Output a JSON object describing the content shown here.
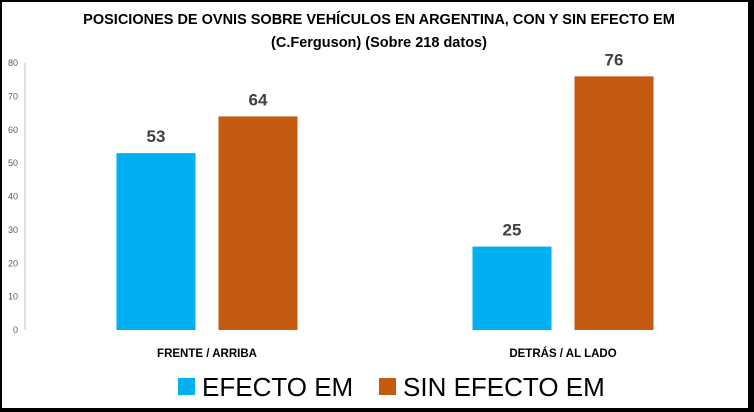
{
  "chart_data": {
    "type": "bar",
    "title": "POSICIONES DE OVNIS SOBRE VEHÍCULOS EN ARGENTINA, CON Y SIN EFECTO EM",
    "subtitle": "(C.Ferguson) (Sobre 218 datos)",
    "categories": [
      "FRENTE / ARRIBA",
      "DETRÁS / AL LADO"
    ],
    "series": [
      {
        "name": "EFECTO EM",
        "values": [
          53,
          25
        ],
        "color": "#00B0F0"
      },
      {
        "name": "SIN EFECTO EM",
        "values": [
          64,
          76
        ],
        "color": "#C55A11"
      }
    ],
    "ylim": [
      0,
      80
    ],
    "yticks": [
      0,
      10,
      20,
      30,
      40,
      50,
      60,
      70,
      80
    ],
    "xlabel": "",
    "ylabel": "",
    "grid": false,
    "legend_position": "bottom",
    "data_labels": true
  }
}
